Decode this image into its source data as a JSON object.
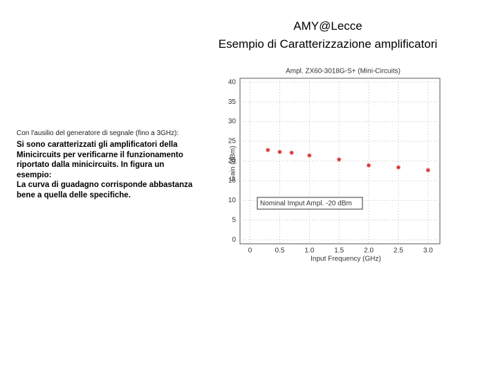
{
  "header": {
    "title": "AMY@Lecce",
    "subtitle": "Esempio di Caratterizzazione amplificatori"
  },
  "text": {
    "intro": "Con l'ausilio del generatore di segnale (fino a 3GHz):",
    "lines": [
      "Si sono caratterizzati gli amplificatori della",
      "Minicircuits per verificarne il funzionamento",
      "riportato dalla minicircuits. In figura un",
      "esempio:",
      "La curva di guadagno corrisponde abbastanza",
      "bene a quella delle specifiche."
    ]
  },
  "chart_data": {
    "type": "scatter",
    "title": "Ampl. ZX60-3018G-S+ (Mini-Circuits)",
    "x_label": "Input Frequency (GHz)",
    "y_label": "Gain (dBm)",
    "annotation": "Nominal Imput Ampl. -20 dBm",
    "x": [
      0.3,
      0.5,
      0.7,
      1.0,
      1.5,
      2.0,
      2.5,
      3.0
    ],
    "values": [
      22.8,
      22.3,
      22.1,
      21.4,
      20.4,
      18.9,
      18.4,
      17.7
    ],
    "color": "#d93030",
    "xlim": [
      -0.17,
      3.2
    ],
    "xticks": [
      0,
      0.5,
      {
        "value": 1,
        "label": "1.0"
      },
      1.5,
      {
        "value": 2,
        "label": "2.0"
      },
      2.5,
      {
        "value": 3,
        "label": "3.0"
      }
    ],
    "ylim": [
      -1,
      41
    ],
    "yticks": [
      0,
      5,
      10,
      15,
      20,
      25,
      30,
      35,
      40
    ]
  }
}
